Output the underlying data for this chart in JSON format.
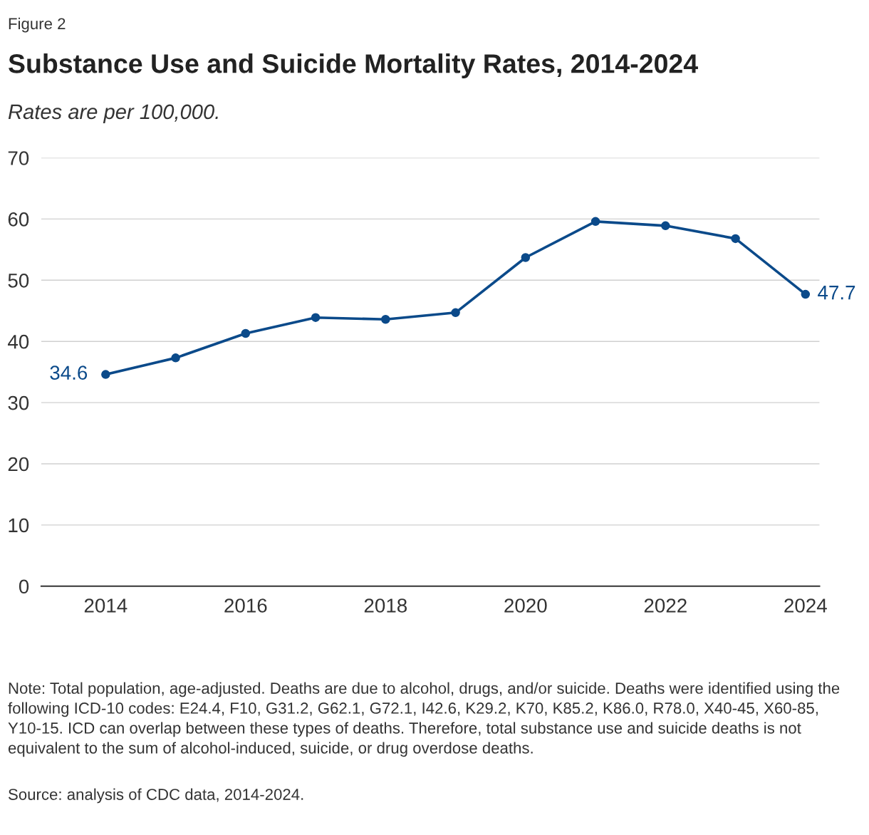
{
  "chart_data": {
    "type": "line",
    "title": "Substance Use and Suicide Mortality Rates, 2014-2024",
    "subtitle": "Rates are per 100,000.",
    "x": [
      2014,
      2015,
      2016,
      2017,
      2018,
      2019,
      2020,
      2021,
      2022,
      2023,
      2024
    ],
    "series": [
      {
        "color": "#0b4a8a",
        "values": [
          34.6,
          37.3,
          41.3,
          43.9,
          43.6,
          44.7,
          53.7,
          59.6,
          58.9,
          56.8,
          47.7
        ],
        "value_labels": [
          "34.6",
          null,
          null,
          null,
          null,
          null,
          null,
          null,
          null,
          null,
          "47.7"
        ]
      }
    ],
    "xlim": [
      2013.08,
      2024.2
    ],
    "xticks": [
      2014,
      2016,
      2018,
      2020,
      2022,
      2024
    ],
    "ylim": [
      0,
      70
    ],
    "yticks": [
      0,
      10,
      20,
      30,
      40,
      50,
      60,
      70
    ],
    "grid": "y",
    "marker": "circle",
    "line_style": "solid",
    "annotations": [
      "Figure 2",
      "Note: Total population, age-adjusted. Deaths are due to alcohol, drugs, and/or suicide. Deaths were identified using the following ICD-10 codes: E24.4, F10, G31.2, G62.1, G72.1, I42.6, K29.2, K70, K85.2, K86.0, R78.0, X40-45, X60-85, Y10-15. ICD can overlap between these types of deaths. Therefore, total substance use and suicide deaths is not equivalent to the sum of alcohol-induced, suicide, or drug overdose deaths.",
      "Source: analysis of CDC data, 2014-2024."
    ]
  }
}
